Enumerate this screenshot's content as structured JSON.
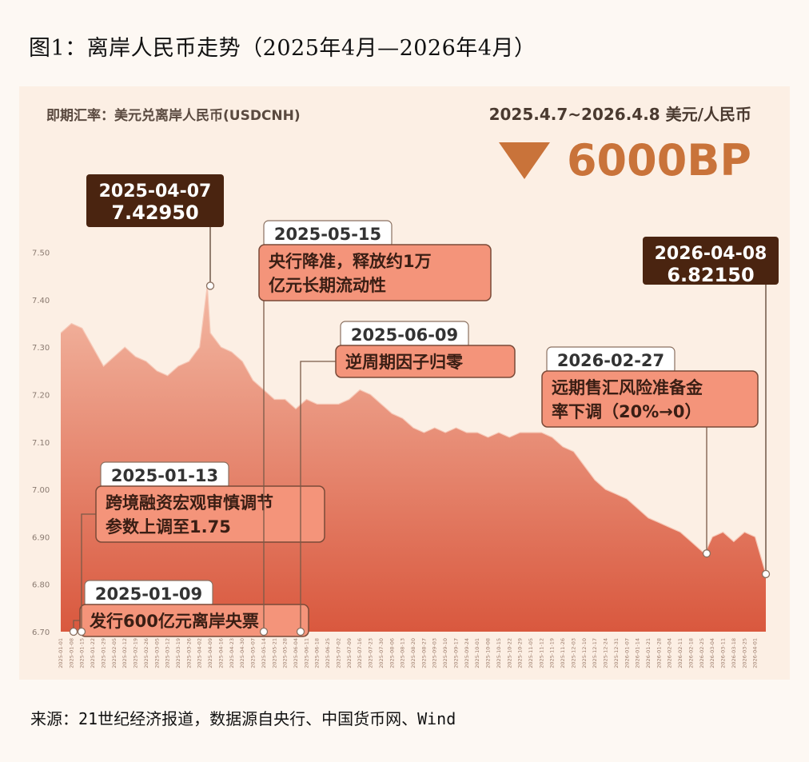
{
  "title": "图1：离岸人民币走势（2025年4月—2026年4月）",
  "source": "来源：21世纪经济报道，数据源自央行、中国货币网、Wind",
  "header": {
    "left_label": "即期汇率：美元兑离岸人民币(USDCNH)",
    "period": "2025.4.7~2026.4.8  美元/人民币",
    "change": "6000BP"
  },
  "colors": {
    "panel_bg": "#fcefe4",
    "area_top": "#f3b8a3",
    "area_bottom": "#d9583e",
    "dark_box": "#4a2410",
    "accent_box": "#f4947a",
    "arrow": "#c9733a"
  },
  "chart_data": {
    "type": "area",
    "ylim": [
      6.7,
      7.55
    ],
    "yticks": [
      "7.50",
      "7.40",
      "7.30",
      "7.20",
      "7.10",
      "7.00",
      "6.90",
      "6.80",
      "6.70"
    ],
    "xlabel": "",
    "ylabel": "",
    "x_ticks": [
      "2025-01-01",
      "2025-01-08",
      "2025-01-15",
      "2025-01-22",
      "2025-01-29",
      "2025-02-05",
      "2025-02-12",
      "2025-02-19",
      "2025-02-26",
      "2025-03-05",
      "2025-03-12",
      "2025-03-19",
      "2025-03-26",
      "2025-04-02",
      "2025-04-09",
      "2025-04-16",
      "2025-04-23",
      "2025-04-30",
      "2025-05-07",
      "2025-05-14",
      "2025-05-21",
      "2025-05-28",
      "2025-06-04",
      "2025-06-11",
      "2025-06-18",
      "2025-06-25",
      "2025-07-02",
      "2025-07-09",
      "2025-07-16",
      "2025-07-23",
      "2025-07-30",
      "2025-08-06",
      "2025-08-13",
      "2025-08-20",
      "2025-08-27",
      "2025-09-03",
      "2025-09-10",
      "2025-09-17",
      "2025-09-24",
      "2025-10-01",
      "2025-10-08",
      "2025-10-15",
      "2025-10-22",
      "2025-10-29",
      "2025-11-05",
      "2025-11-12",
      "2025-11-19",
      "2025-11-26",
      "2025-12-03",
      "2025-12-10",
      "2025-12-17",
      "2025-12-24",
      "2025-12-31",
      "2026-01-07",
      "2026-01-14",
      "2026-01-21",
      "2026-01-28",
      "2026-02-04",
      "2026-02-11",
      "2026-02-18",
      "2026-02-25",
      "2026-03-04",
      "2026-03-11",
      "2026-03-18",
      "2026-03-25",
      "2026-04-01"
    ],
    "x": [
      "2025-01-01",
      "2025-01-08",
      "2025-01-15",
      "2025-01-22",
      "2025-01-29",
      "2025-02-05",
      "2025-02-12",
      "2025-02-19",
      "2025-02-26",
      "2025-03-05",
      "2025-03-12",
      "2025-03-19",
      "2025-03-26",
      "2025-04-02",
      "2025-04-07",
      "2025-04-09",
      "2025-04-16",
      "2025-04-23",
      "2025-04-30",
      "2025-05-07",
      "2025-05-14",
      "2025-05-21",
      "2025-05-28",
      "2025-06-04",
      "2025-06-11",
      "2025-06-18",
      "2025-06-25",
      "2025-07-02",
      "2025-07-09",
      "2025-07-16",
      "2025-07-23",
      "2025-07-30",
      "2025-08-06",
      "2025-08-13",
      "2025-08-20",
      "2025-08-27",
      "2025-09-03",
      "2025-09-10",
      "2025-09-17",
      "2025-09-24",
      "2025-10-01",
      "2025-10-08",
      "2025-10-15",
      "2025-10-22",
      "2025-10-29",
      "2025-11-05",
      "2025-11-12",
      "2025-11-19",
      "2025-11-26",
      "2025-12-03",
      "2025-12-10",
      "2025-12-17",
      "2025-12-24",
      "2025-12-31",
      "2026-01-07",
      "2026-01-14",
      "2026-01-21",
      "2026-01-28",
      "2026-02-04",
      "2026-02-11",
      "2026-02-18",
      "2026-02-25",
      "2026-02-27",
      "2026-03-04",
      "2026-03-11",
      "2026-03-18",
      "2026-03-25",
      "2026-04-01",
      "2026-04-08"
    ],
    "values": [
      7.33,
      7.35,
      7.34,
      7.3,
      7.26,
      7.28,
      7.3,
      7.28,
      7.27,
      7.25,
      7.24,
      7.26,
      7.27,
      7.3,
      7.4295,
      7.33,
      7.3,
      7.29,
      7.27,
      7.23,
      7.21,
      7.19,
      7.19,
      7.17,
      7.19,
      7.18,
      7.18,
      7.18,
      7.19,
      7.21,
      7.2,
      7.18,
      7.16,
      7.15,
      7.13,
      7.12,
      7.13,
      7.12,
      7.13,
      7.12,
      7.12,
      7.11,
      7.12,
      7.11,
      7.12,
      7.12,
      7.12,
      7.11,
      7.09,
      7.08,
      7.05,
      7.02,
      7.0,
      6.99,
      6.98,
      6.96,
      6.94,
      6.93,
      6.92,
      6.91,
      6.89,
      6.87,
      6.865,
      6.9,
      6.91,
      6.89,
      6.91,
      6.9,
      6.8215
    ],
    "events": [
      {
        "date": "2025-01-09",
        "title": "2025-01-09",
        "text": [
          "发行600亿元离岸央票"
        ]
      },
      {
        "date": "2025-01-13",
        "title": "2025-01-13",
        "text": [
          "跨境融资宏观审慎调节",
          "参数上调至1.75"
        ]
      },
      {
        "date": "2025-05-15",
        "title": "2025-05-15",
        "text": [
          "央行降准，释放约1万",
          "亿元长期流动性"
        ]
      },
      {
        "date": "2025-06-09",
        "title": "2025-06-09",
        "text": [
          "逆周期因子归零"
        ]
      },
      {
        "date": "2026-02-27",
        "title": "2026-02-27",
        "text": [
          "远期售汇风险准备金",
          "率下调（20%→0）"
        ]
      }
    ],
    "highlights": [
      {
        "date": "2025-04-07",
        "title": "2025-04-07",
        "value": "7.42950"
      },
      {
        "date": "2026-04-08",
        "title": "2026-04-08",
        "value": "6.82150"
      }
    ]
  }
}
